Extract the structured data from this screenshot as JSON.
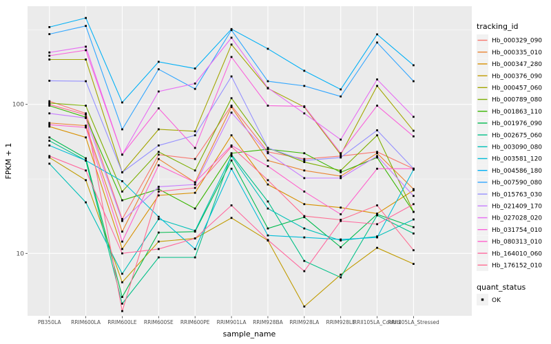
{
  "figure": {
    "background": "#FFFFFF",
    "panel_background": "#EBEBEB",
    "gridline_color": "#FFFFFF",
    "tick_color": "#333333",
    "tick_label_color": "#4D4D4D",
    "text_color": "#000000"
  },
  "legend": {
    "tracking_title": "tracking_id",
    "quant_title": "quant_status",
    "key_background": "#F2F2F2",
    "quant_items": [
      {
        "label": "OK",
        "marker": "black-square",
        "color": "#000000"
      }
    ]
  },
  "chart_data": {
    "type": "line",
    "title": "",
    "xlabel": "sample_name",
    "ylabel": "FPKM + 1",
    "y_scale": "log10",
    "y_tick_values": [
      100,
      10
    ],
    "y_tick_labels": [
      "100",
      "10"
    ],
    "y_minor_gridlines": [
      316,
      31.6
    ],
    "ylim": [
      3.8,
      456
    ],
    "grid": "on",
    "legend_position": "right",
    "point_marker": "filled-square",
    "point_color": "#000000",
    "categories": [
      "PB350LA",
      "RRIM600LA",
      "RRIM600LE",
      "RRIM600SE",
      "RRIM600PE",
      "RRIM901LA",
      "RRIM928BA",
      "RRIM928LA",
      "RRIM928LE",
      "RRII105LA_Control",
      "RRII105LA_Stressed"
    ],
    "series": [
      {
        "name": "Hb_000329_090",
        "color": "#F8766D",
        "values": [
          105,
          87,
          17,
          46,
          43,
          98,
          48,
          43,
          45,
          48,
          37
        ]
      },
      {
        "name": "Hb_000335_010",
        "color": "#EA8331",
        "values": [
          75,
          72,
          14,
          43,
          30,
          96,
          42,
          36,
          33,
          47,
          27
        ]
      },
      {
        "name": "Hb_000347_280",
        "color": "#D89000",
        "values": [
          71,
          60,
          10.7,
          24.5,
          25.5,
          62,
          29,
          21.4,
          20.3,
          18.5,
          26.5
        ]
      },
      {
        "name": "Hb_000376_090",
        "color": "#C09B00",
        "values": [
          44,
          31,
          6.4,
          12,
          12.6,
          17.3,
          12.2,
          4.4,
          7.2,
          10.9,
          8.5
        ]
      },
      {
        "name": "Hb_000457_060",
        "color": "#A3A500",
        "values": [
          200,
          200,
          35,
          68,
          66,
          252,
          128,
          96,
          46,
          133,
          66.5
        ]
      },
      {
        "name": "Hb_000789_080",
        "color": "#7CAE00",
        "values": [
          102,
          98,
          26,
          48,
          36,
          110,
          51,
          41,
          36,
          62,
          19
        ]
      },
      {
        "name": "Hb_001863_110",
        "color": "#39B600",
        "values": [
          98,
          82,
          22.7,
          27,
          20,
          47,
          50,
          47,
          35,
          44,
          19
        ]
      },
      {
        "name": "Hb_001976_090",
        "color": "#00BB4E",
        "values": [
          60,
          43.5,
          5.1,
          13.8,
          14,
          42,
          14.7,
          17.5,
          11,
          18.3,
          15
        ]
      },
      {
        "name": "Hb_002675_060",
        "color": "#00C087",
        "values": [
          57,
          42,
          4.6,
          9.4,
          9.4,
          46,
          22.3,
          8.9,
          6.9,
          18,
          13.6
        ]
      },
      {
        "name": "Hb_003090_080",
        "color": "#00C0B8",
        "values": [
          40,
          22,
          7.3,
          17,
          14.2,
          45,
          20,
          14.7,
          12.2,
          13,
          16.9
        ]
      },
      {
        "name": "Hb_003581_120",
        "color": "#00BCD8",
        "values": [
          53,
          42,
          30.5,
          17.6,
          10.7,
          37,
          13.2,
          12.8,
          12.4,
          12.8,
          36.5
        ]
      },
      {
        "name": "Hb_004586_180",
        "color": "#00B0F6",
        "values": [
          330,
          380,
          103,
          193,
          174,
          320,
          236,
          168,
          126,
          295,
          183
        ]
      },
      {
        "name": "Hb_007590_080",
        "color": "#2FA5FF",
        "values": [
          296,
          336,
          68,
          172,
          127,
          315,
          143,
          133,
          113,
          260,
          143
        ]
      },
      {
        "name": "Hb_015763_030",
        "color": "#9590FF",
        "values": [
          144,
          143,
          35,
          53,
          62,
          154,
          51,
          42,
          44,
          67,
          37
        ]
      },
      {
        "name": "Hb_021409_170",
        "color": "#C77CFF",
        "values": [
          87,
          81,
          16.5,
          28,
          29,
          88,
          47,
          32,
          32,
          45,
          24.3
        ]
      },
      {
        "name": "Hb_027028_020",
        "color": "#E76BF3",
        "values": [
          223,
          244,
          46,
          122,
          138,
          280,
          129,
          87,
          58,
          147,
          82.5
        ]
      },
      {
        "name": "Hb_031754_010",
        "color": "#FA62DB",
        "values": [
          212,
          231,
          46,
          94,
          51,
          208,
          98,
          97,
          47,
          98,
          61
        ]
      },
      {
        "name": "Hb_080313_010",
        "color": "#FF61CC",
        "values": [
          73,
          70,
          12,
          39,
          30,
          53,
          38.5,
          26,
          18.3,
          37,
          37
        ]
      },
      {
        "name": "Hb_164010_060",
        "color": "#FF689E",
        "values": [
          45,
          36,
          10,
          10.7,
          12.6,
          21,
          12.3,
          7.6,
          16.5,
          15.7,
          21.4
        ]
      },
      {
        "name": "Hb_176152_010",
        "color": "#FF6C91",
        "values": [
          100,
          85,
          4.1,
          26,
          27.5,
          52,
          31,
          17.8,
          16.8,
          21,
          10.5
        ]
      }
    ]
  }
}
